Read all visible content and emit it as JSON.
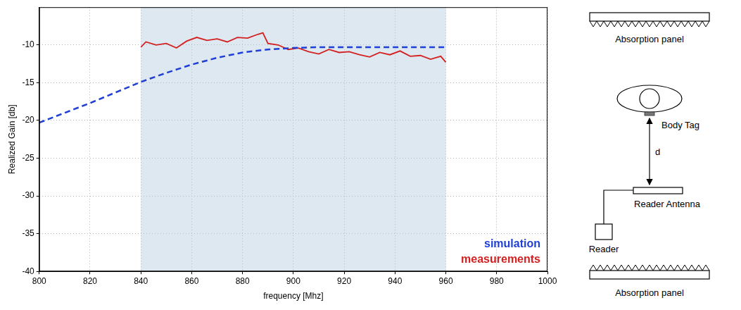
{
  "chart_data": {
    "type": "line",
    "x_label": "frequency [Mhz]",
    "y_label": "Realized Gain [db]",
    "xlim": [
      800,
      1000
    ],
    "xticks": [
      800,
      820,
      840,
      860,
      880,
      900,
      920,
      940,
      960,
      980,
      1000
    ],
    "ylim": [
      -40,
      -5
    ],
    "yticks": [
      -40,
      -35,
      -30,
      -25,
      -20,
      -15,
      -10
    ],
    "grid": true,
    "legend": "lower right",
    "highlight": [
      840,
      960
    ],
    "series": [
      {
        "name": "simulation",
        "color": "#1f3fd6",
        "line_style": "dashed",
        "x": [
          800,
          810,
          820,
          830,
          840,
          850,
          860,
          870,
          880,
          890,
          900,
          910,
          920,
          930,
          940,
          950,
          960
        ],
        "values": [
          -20.3,
          -19.0,
          -17.7,
          -16.3,
          -14.9,
          -13.7,
          -12.6,
          -11.7,
          -11.0,
          -10.6,
          -10.4,
          -10.3,
          -10.3,
          -10.3,
          -10.3,
          -10.3,
          -10.3
        ]
      },
      {
        "name": "measurements",
        "color": "#d42020",
        "line_style": "solid",
        "x": [
          840,
          842,
          846,
          850,
          854,
          858,
          862,
          866,
          870,
          874,
          878,
          882,
          886,
          888,
          890,
          894,
          898,
          902,
          906,
          910,
          914,
          918,
          922,
          926,
          930,
          934,
          938,
          942,
          946,
          950,
          954,
          958,
          960
        ],
        "values": [
          -10.3,
          -9.6,
          -10.0,
          -9.8,
          -10.4,
          -9.5,
          -9.0,
          -9.4,
          -9.2,
          -9.6,
          -9.0,
          -9.1,
          -8.6,
          -8.4,
          -9.8,
          -10.0,
          -10.6,
          -10.4,
          -10.9,
          -11.2,
          -10.6,
          -11.0,
          -10.9,
          -11.3,
          -11.6,
          -11.0,
          -11.3,
          -10.8,
          -11.5,
          -11.4,
          -11.9,
          -11.5,
          -12.3
        ]
      }
    ]
  },
  "diagram": {
    "labels": {
      "top_panel": "Absorption panel",
      "body_tag": "Body Tag",
      "distance": "d",
      "reader": "Reader",
      "reader_antenna": "Reader Antenna",
      "bottom_panel": "Absorption panel"
    }
  }
}
